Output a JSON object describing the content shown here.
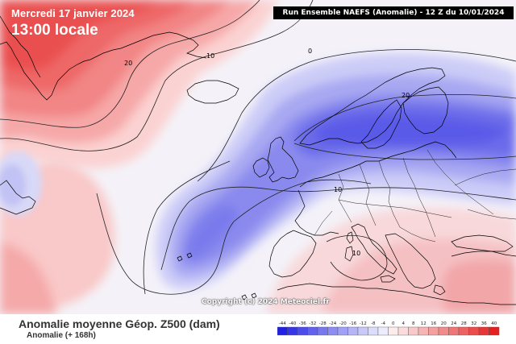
{
  "header": {
    "date": "Mercredi 17 janvier 2024",
    "time": "13:00 locale",
    "run_info": "Run Ensemble NAEFS (Anomalie) - 12 Z du 10/01/2024"
  },
  "map": {
    "contour_labels": [
      "20",
      "10",
      "0",
      "20",
      "10",
      "10"
    ],
    "copyright": "Copyright (c) 2024 Meteociel.fr"
  },
  "footer": {
    "title": "Anomalie moyenne Géop. Z500 (dam)",
    "subtitle": "Anomalie (+ 168h)"
  },
  "legend": {
    "labels": [
      "-44",
      "-40",
      "-36",
      "-32",
      "-28",
      "-24",
      "-20",
      "-16",
      "-12",
      "-8",
      "-4",
      "0",
      "4",
      "8",
      "12",
      "16",
      "20",
      "24",
      "28",
      "32",
      "36",
      "40"
    ],
    "colors": [
      "#2020e6",
      "#3636e8",
      "#4c4cec",
      "#6262ee",
      "#7777f0",
      "#8c8cf2",
      "#a0a0f5",
      "#b4b4f7",
      "#c8c8f9",
      "#dcdcfb",
      "#ececfd",
      "#fdecec",
      "#fbdcdc",
      "#f9c8c8",
      "#f7b4b4",
      "#f5a0a0",
      "#f28c8c",
      "#f07676",
      "#ee6262",
      "#ec4c4c",
      "#e83636",
      "#e62020"
    ]
  },
  "colors": {
    "background": "#f2f2f8",
    "positive_anomaly": "#f06a6a",
    "negative_anomaly": "#5a5aec",
    "coastline": "#000000"
  }
}
